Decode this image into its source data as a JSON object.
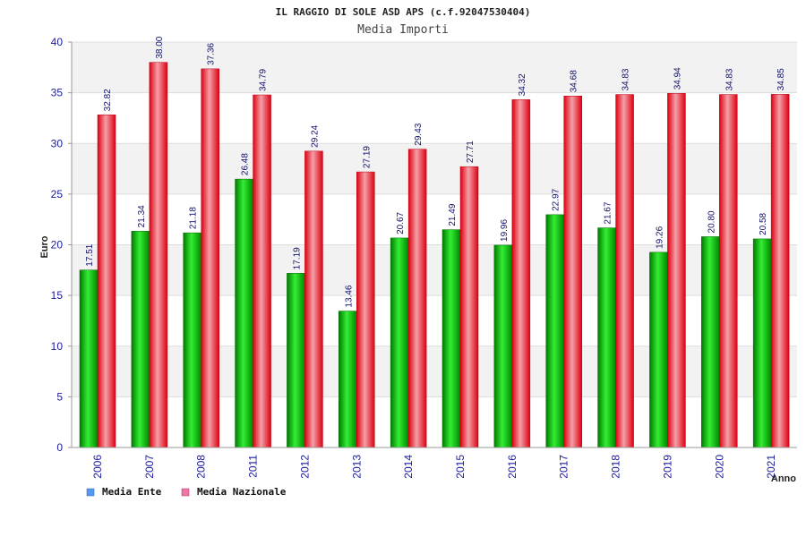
{
  "chart_data": {
    "type": "bar",
    "title": "IL RAGGIO DI SOLE ASD APS (c.f.92047530404)",
    "subtitle": "Media Importi",
    "ylabel": "Euro",
    "xlabel": "Anno",
    "ylim": [
      0,
      40
    ],
    "yticks": [
      "0",
      "5",
      "10",
      "15",
      "20",
      "25",
      "30",
      "35",
      "40"
    ],
    "grid": true,
    "legend_position": "bottom-left",
    "categories": [
      "2006",
      "2007",
      "2008",
      "2011",
      "2012",
      "2013",
      "2014",
      "2015",
      "2016",
      "2017",
      "2018",
      "2019",
      "2020",
      "2021"
    ],
    "series": [
      {
        "name": "Media Ente",
        "color": "#00aa00",
        "legend_color": "#5599ee",
        "values": [
          17.51,
          21.34,
          21.18,
          26.48,
          17.19,
          13.46,
          20.67,
          21.49,
          19.96,
          22.97,
          21.67,
          19.26,
          20.8,
          20.58
        ],
        "labels": [
          "17.51",
          "21.34",
          "21.18",
          "26.48",
          "17.19",
          "13.46",
          "20.67",
          "21.49",
          "19.96",
          "22.97",
          "21.67",
          "19.26",
          "20.80",
          "20.58"
        ]
      },
      {
        "name": "Media Nazionale",
        "color": "#ee1122",
        "legend_color": "#ee77aa",
        "values": [
          32.82,
          38.0,
          37.36,
          34.79,
          29.24,
          27.19,
          29.43,
          27.71,
          34.32,
          34.68,
          34.83,
          34.94,
          34.83,
          34.85
        ],
        "labels": [
          "32.82",
          "38.00",
          "37.36",
          "34.79",
          "29.24",
          "27.19",
          "29.43",
          "27.71",
          "34.32",
          "34.68",
          "34.83",
          "34.94",
          "34.83",
          "34.85"
        ]
      }
    ]
  }
}
